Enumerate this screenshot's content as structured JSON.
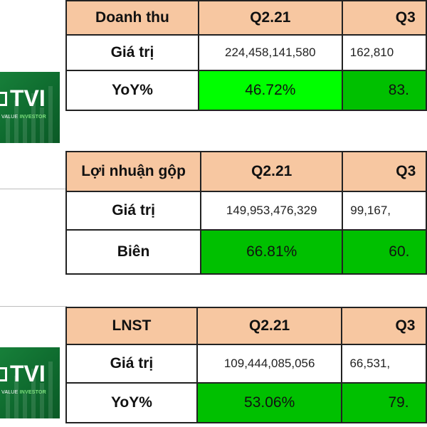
{
  "logo": {
    "text": "TVI",
    "tagline_plain": "VALUE ",
    "tagline_accent": "INVESTOR"
  },
  "colors": {
    "header_bg": "#f7c7a1",
    "bright_green": "#00ff00",
    "green": "#00c000",
    "logo_green": "#17803a"
  },
  "revenue": {
    "title": "Doanh thu",
    "col1": "Q2.21",
    "col2": "Q3",
    "row1_label": "Giá trị",
    "row1_v1": "224,458,141,580",
    "row1_v2": "162,810",
    "row2_label": "YoY%",
    "row2_v1": "46.72%",
    "row2_v2": "83."
  },
  "gross_profit": {
    "title": "Lợi nhuận gộp",
    "col1": "Q2.21",
    "col2": "Q3",
    "row1_label": "Giá trị",
    "row1_v1": "149,953,476,329",
    "row1_v2": "99,167,",
    "row2_label": "Biên",
    "row2_v1": "66.81%",
    "row2_v2": "60."
  },
  "net_profit": {
    "title": "LNST",
    "col1": "Q2.21",
    "col2": "Q3",
    "row1_label": "Giá trị",
    "row1_v1": "109,444,085,056",
    "row1_v2": "66,531,",
    "row2_label": "YoY%",
    "row2_v1": "53.06%",
    "row2_v2": "79."
  }
}
